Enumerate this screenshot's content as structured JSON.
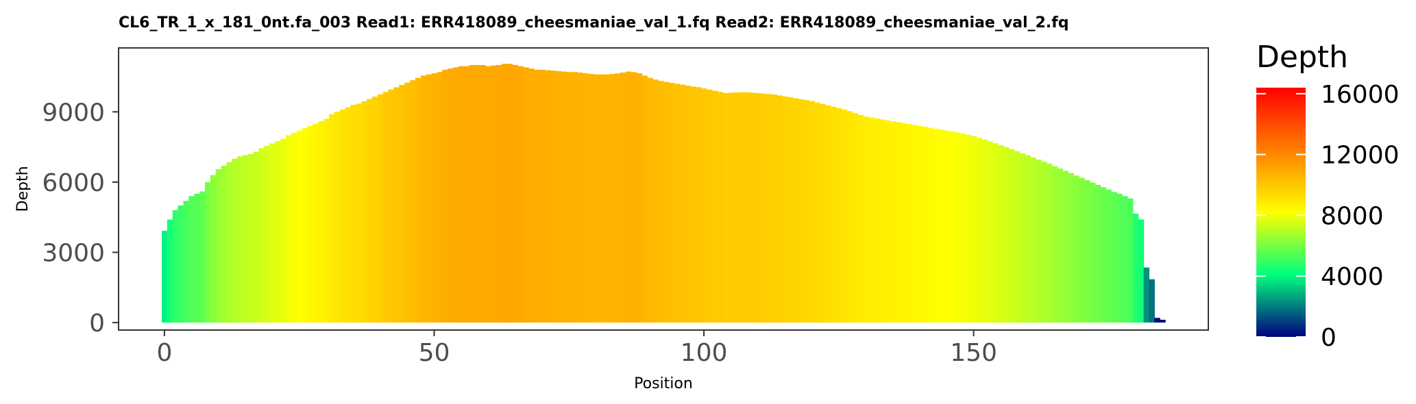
{
  "chart_data": {
    "type": "bar",
    "title": "CL6_TR_1_x_181_0nt.fa_003   Read1: ERR418089_cheesmaniae_val_1.fq   Read2: ERR418089_cheesmaniae_val_2.fq",
    "xlabel": "Position",
    "ylabel": "Depth",
    "xlim": [
      -8.5,
      193.5
    ],
    "ylim": [
      -320,
      11730
    ],
    "x_ticks": [
      0,
      50,
      100,
      150
    ],
    "y_ticks": [
      0,
      3000,
      6000,
      9000
    ],
    "legend": {
      "title": "Depth",
      "placement": "right",
      "breaks": [
        0,
        4000,
        8000,
        12000,
        16000
      ],
      "range": [
        0,
        16400
      ]
    },
    "colors": [
      "#00007f",
      "#00ff7f",
      "#ffff00",
      "#ff7f00",
      "#ff0000"
    ],
    "grid": false,
    "x_start": 0,
    "x_step": 1,
    "values": [
      3920,
      4400,
      4800,
      5000,
      5200,
      5400,
      5500,
      5600,
      6000,
      6300,
      6550,
      6700,
      6850,
      7000,
      7100,
      7150,
      7200,
      7300,
      7450,
      7550,
      7650,
      7750,
      7850,
      8000,
      8100,
      8200,
      8300,
      8400,
      8500,
      8600,
      8700,
      8900,
      9000,
      9100,
      9200,
      9300,
      9350,
      9450,
      9550,
      9650,
      9750,
      9850,
      9950,
      10050,
      10150,
      10250,
      10350,
      10450,
      10550,
      10600,
      10650,
      10700,
      10800,
      10850,
      10900,
      10950,
      10950,
      11000,
      11000,
      11000,
      10950,
      10980,
      11000,
      11050,
      11050,
      11000,
      10950,
      10900,
      10850,
      10800,
      10800,
      10780,
      10760,
      10740,
      10720,
      10700,
      10700,
      10680,
      10650,
      10620,
      10600,
      10600,
      10600,
      10620,
      10640,
      10680,
      10720,
      10700,
      10650,
      10550,
      10450,
      10380,
      10320,
      10280,
      10240,
      10200,
      10160,
      10120,
      10080,
      10050,
      10000,
      9950,
      9900,
      9850,
      9800,
      9820,
      9830,
      9840,
      9830,
      9820,
      9800,
      9780,
      9760,
      9740,
      9700,
      9660,
      9620,
      9580,
      9540,
      9500,
      9460,
      9400,
      9340,
      9280,
      9220,
      9160,
      9100,
      9030,
      8950,
      8870,
      8800,
      8760,
      8720,
      8680,
      8640,
      8600,
      8560,
      8520,
      8480,
      8440,
      8400,
      8360,
      8320,
      8280,
      8240,
      8200,
      8160,
      8120,
      8080,
      8020,
      7960,
      7890,
      7820,
      7740,
      7660,
      7580,
      7500,
      7410,
      7320,
      7230,
      7140,
      7050,
      6960,
      6870,
      6780,
      6680,
      6580,
      6480,
      6380,
      6280,
      6180,
      6080,
      5980,
      5880,
      5780,
      5680,
      5580,
      5500,
      5400,
      5300,
      4650,
      4400,
      2350,
      1850,
      200,
      120,
      0
    ]
  }
}
